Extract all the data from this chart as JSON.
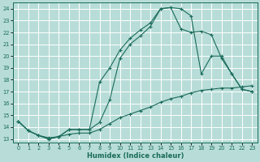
{
  "xlabel": "Humidex (Indice chaleur)",
  "bg_color": "#b8ddd8",
  "grid_color": "#ffffff",
  "line_color": "#1a6b5a",
  "xlim": [
    -0.5,
    23.5
  ],
  "ylim": [
    12.7,
    24.5
  ],
  "xticks": [
    0,
    1,
    2,
    3,
    4,
    5,
    6,
    7,
    8,
    9,
    10,
    11,
    12,
    13,
    14,
    15,
    16,
    17,
    18,
    19,
    20,
    21,
    22,
    23
  ],
  "yticks": [
    13,
    14,
    15,
    16,
    17,
    18,
    19,
    20,
    21,
    22,
    23,
    24
  ],
  "curve1_x": [
    0,
    1,
    2,
    3,
    4,
    5,
    6,
    7,
    8,
    9,
    10,
    11,
    12,
    13,
    14,
    15,
    16,
    17,
    18,
    19,
    20,
    21,
    22,
    23
  ],
  "curve1_y": [
    14.5,
    13.7,
    13.3,
    13.0,
    13.2,
    13.8,
    13.8,
    13.8,
    14.4,
    16.3,
    19.8,
    21.0,
    21.7,
    22.5,
    24.0,
    24.1,
    24.0,
    23.4,
    18.5,
    20.0,
    20.0,
    18.5,
    17.2,
    17.0
  ],
  "curve2_x": [
    0,
    1,
    2,
    3,
    4,
    5,
    6,
    7,
    8,
    9,
    10,
    11,
    12,
    13,
    14,
    15,
    16,
    17,
    18,
    19,
    20,
    21,
    22,
    23
  ],
  "curve2_y": [
    14.5,
    13.7,
    13.3,
    13.0,
    13.2,
    13.8,
    13.8,
    13.8,
    17.8,
    19.0,
    20.5,
    21.5,
    22.2,
    22.8,
    24.0,
    24.1,
    22.3,
    22.0,
    22.1,
    21.8,
    19.8,
    18.5,
    17.2,
    17.0
  ],
  "curve3_x": [
    0,
    1,
    2,
    3,
    4,
    5,
    6,
    7,
    8,
    9,
    10,
    11,
    12,
    13,
    14,
    15,
    16,
    17,
    18,
    19,
    20,
    21,
    22,
    23
  ],
  "curve3_y": [
    14.5,
    13.7,
    13.3,
    13.1,
    13.2,
    13.4,
    13.5,
    13.5,
    13.8,
    14.3,
    14.8,
    15.1,
    15.4,
    15.7,
    16.1,
    16.4,
    16.6,
    16.9,
    17.1,
    17.2,
    17.3,
    17.3,
    17.4,
    17.5
  ]
}
